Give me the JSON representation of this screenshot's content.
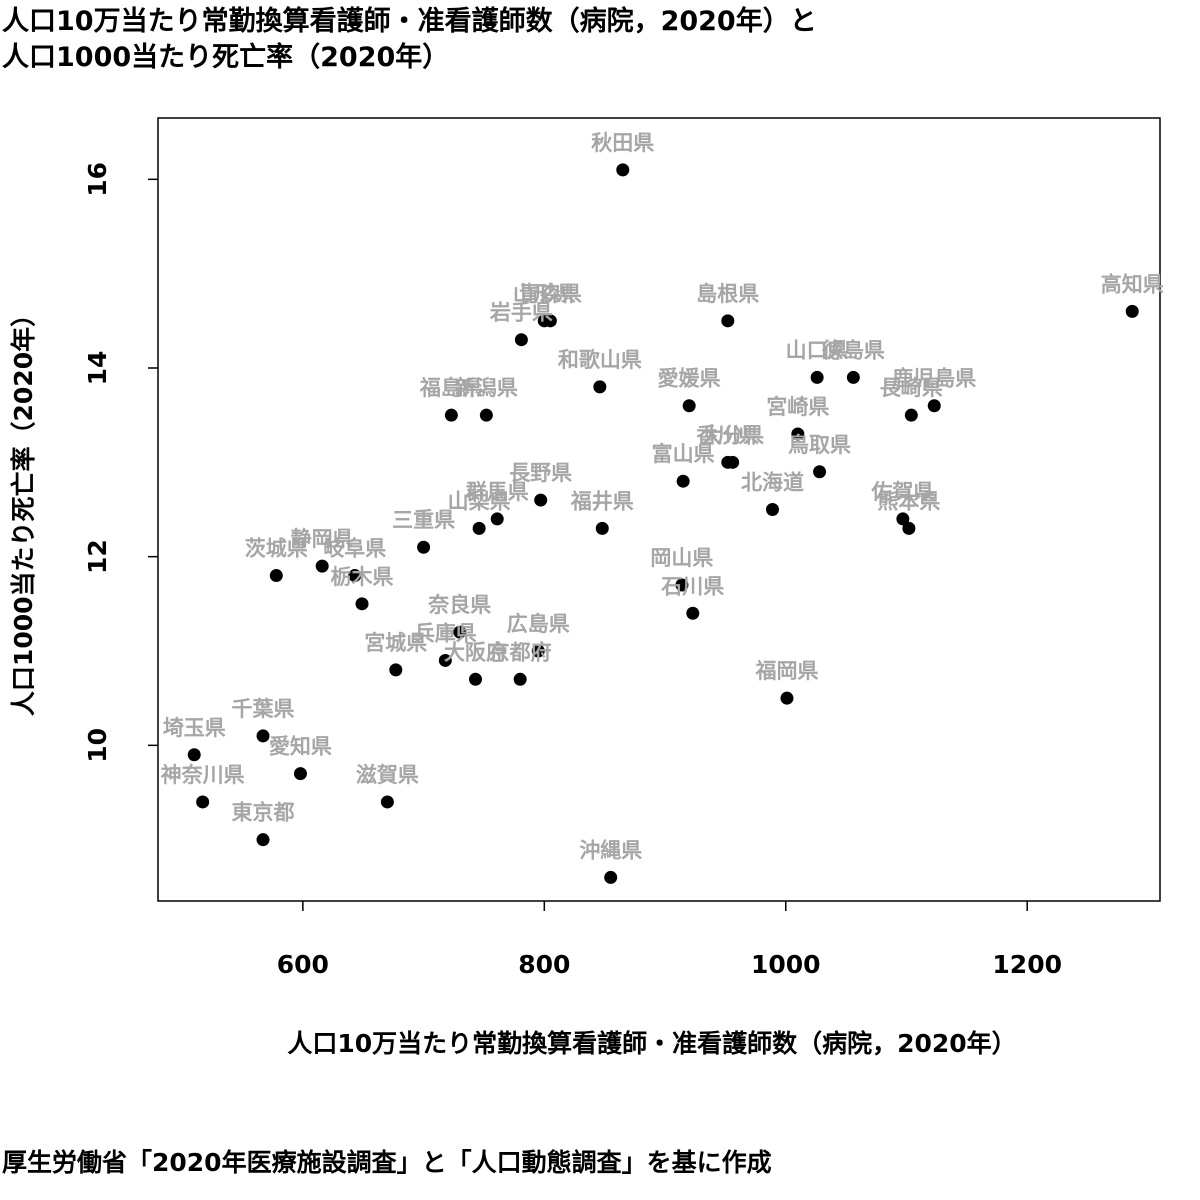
{
  "title": {
    "line1": "人口10万当たり常勤換算看護師・准看護師数（病院，2020年）と",
    "line2": "人口1000当たり死亡率（2020年）"
  },
  "source": "厚生労働省「2020年医療施設調査」と「人口動態調査」を基に作成",
  "colors": {
    "point": "#000000",
    "label": "#a6a6a6",
    "axis": "#000000"
  },
  "chart_data": {
    "type": "scatter",
    "xlabel": "人口10万当たり常勤換算看護師・准看護師数（病院，2020年）",
    "ylabel": "人口1000当たり死亡率（2020年）",
    "xlim": [
      480,
      1310
    ],
    "ylim": [
      8.35,
      16.65
    ],
    "xticks": [
      600,
      800,
      1000,
      1200
    ],
    "yticks": [
      10,
      12,
      14,
      16
    ],
    "grid": false,
    "points": [
      {
        "label": "秋田県",
        "x": 865,
        "y": 16.1
      },
      {
        "label": "高知県",
        "x": 1287,
        "y": 14.6
      },
      {
        "label": "島根県",
        "x": 952,
        "y": 14.5
      },
      {
        "label": "山形県",
        "x": 800,
        "y": 14.5
      },
      {
        "label": "青森県",
        "x": 805,
        "y": 14.5
      },
      {
        "label": "岩手県",
        "x": 781,
        "y": 14.3
      },
      {
        "label": "和歌山県",
        "x": 846,
        "y": 13.8
      },
      {
        "label": "山口県",
        "x": 1026,
        "y": 13.9
      },
      {
        "label": "徳島県",
        "x": 1056,
        "y": 13.9
      },
      {
        "label": "鹿児島県",
        "x": 1123,
        "y": 13.6
      },
      {
        "label": "長崎県",
        "x": 1104,
        "y": 13.5
      },
      {
        "label": "愛媛県",
        "x": 920,
        "y": 13.6
      },
      {
        "label": "宮崎県",
        "x": 1010,
        "y": 13.3
      },
      {
        "label": "福島県",
        "x": 723,
        "y": 13.5
      },
      {
        "label": "新潟県",
        "x": 752,
        "y": 13.5
      },
      {
        "label": "香川県",
        "x": 952,
        "y": 13.0
      },
      {
        "label": "大分県",
        "x": 956,
        "y": 13.0
      },
      {
        "label": "鳥取県",
        "x": 1028,
        "y": 12.9
      },
      {
        "label": "富山県",
        "x": 915,
        "y": 12.8
      },
      {
        "label": "北海道",
        "x": 989,
        "y": 12.5
      },
      {
        "label": "長野県",
        "x": 797,
        "y": 12.6
      },
      {
        "label": "群馬県",
        "x": 761,
        "y": 12.4
      },
      {
        "label": "山梨県",
        "x": 746,
        "y": 12.3
      },
      {
        "label": "福井県",
        "x": 848,
        "y": 12.3
      },
      {
        "label": "佐賀県",
        "x": 1097,
        "y": 12.4
      },
      {
        "label": "熊本県",
        "x": 1102,
        "y": 12.3
      },
      {
        "label": "三重県",
        "x": 700,
        "y": 12.1
      },
      {
        "label": "静岡県",
        "x": 616,
        "y": 11.9
      },
      {
        "label": "茨城県",
        "x": 578,
        "y": 11.8
      },
      {
        "label": "岐阜県",
        "x": 643,
        "y": 11.8
      },
      {
        "label": "栃木県",
        "x": 649,
        "y": 11.5
      },
      {
        "label": "岡山県",
        "x": 914,
        "y": 11.7
      },
      {
        "label": "石川県",
        "x": 923,
        "y": 11.4
      },
      {
        "label": "奈良県",
        "x": 730,
        "y": 11.2
      },
      {
        "label": "広島県",
        "x": 795,
        "y": 11.0
      },
      {
        "label": "兵庫県",
        "x": 718,
        "y": 10.9
      },
      {
        "label": "宮城県",
        "x": 677,
        "y": 10.8
      },
      {
        "label": "大阪府",
        "x": 743,
        "y": 10.7
      },
      {
        "label": "京都府",
        "x": 780,
        "y": 10.7
      },
      {
        "label": "福岡県",
        "x": 1001,
        "y": 10.5
      },
      {
        "label": "千葉県",
        "x": 567,
        "y": 10.1
      },
      {
        "label": "埼玉県",
        "x": 510,
        "y": 9.9
      },
      {
        "label": "愛知県",
        "x": 598,
        "y": 9.7
      },
      {
        "label": "神奈川県",
        "x": 517,
        "y": 9.4
      },
      {
        "label": "滋賀県",
        "x": 670,
        "y": 9.4
      },
      {
        "label": "東京都",
        "x": 567,
        "y": 9.0
      },
      {
        "label": "沖縄県",
        "x": 855,
        "y": 8.6
      }
    ]
  }
}
